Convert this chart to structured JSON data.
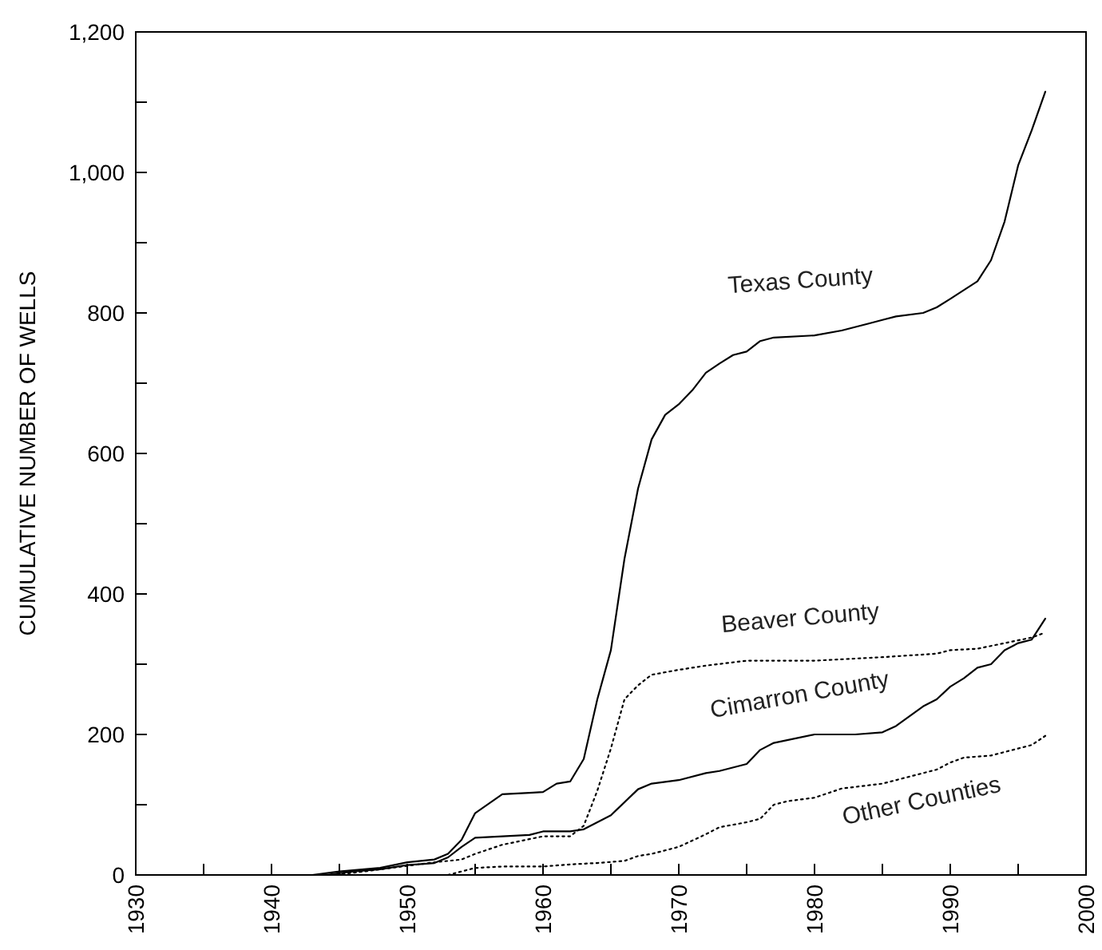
{
  "chart_data": {
    "type": "line",
    "ylabel": "CUMULATIVE NUMBER OF WELLS",
    "xlim": [
      1930,
      2000
    ],
    "ylim": [
      0,
      1200
    ],
    "xticks": [
      1930,
      {
        "value": 1935,
        "label": null
      },
      1940,
      {
        "value": 1945,
        "label": null
      },
      1950,
      {
        "value": 1955,
        "label": null
      },
      1960,
      {
        "value": 1965,
        "label": null
      },
      1970,
      {
        "value": 1975,
        "label": null
      },
      1980,
      {
        "value": 1985,
        "label": null
      },
      1990,
      {
        "value": 1995,
        "label": null
      },
      2000
    ],
    "yticks": [
      0,
      {
        "value": 100,
        "label": null
      },
      200,
      {
        "value": 300,
        "label": null
      },
      400,
      {
        "value": 500,
        "label": null
      },
      600,
      {
        "value": 700,
        "label": null
      },
      800,
      {
        "value": 900,
        "label": null
      },
      {
        "value": 1000,
        "label": "1,000"
      },
      {
        "value": 1100,
        "label": null
      },
      {
        "value": 1200,
        "label": "1,200"
      }
    ],
    "grid": false,
    "marker": "none",
    "series": [
      {
        "name": "Texas County",
        "color": "#000000",
        "line_style": "solid",
        "x": [
          1943,
          1945,
          1948,
          1950,
          1952,
          1953,
          1954,
          1955,
          1957,
          1959,
          1960,
          1961,
          1962,
          1963,
          1964,
          1965,
          1966,
          1967,
          1968,
          1969,
          1970,
          1971,
          1972,
          1973,
          1974,
          1975,
          1976,
          1977,
          1980,
          1982,
          1984,
          1985,
          1986,
          1988,
          1989,
          1990,
          1992,
          1993,
          1994,
          1995,
          1996,
          1997
        ],
        "values": [
          0,
          5,
          10,
          18,
          22,
          30,
          50,
          88,
          115,
          117,
          118,
          130,
          133,
          165,
          250,
          320,
          450,
          550,
          620,
          655,
          670,
          690,
          715,
          728,
          740,
          745,
          760,
          765,
          768,
          775,
          785,
          790,
          795,
          800,
          808,
          820,
          845,
          875,
          930,
          1010,
          1060,
          1115
        ]
      },
      {
        "name": "Beaver County",
        "color": "#000000",
        "line_style": "dotted",
        "x": [
          1941,
          1944,
          1946,
          1948,
          1950,
          1952,
          1954,
          1955,
          1957,
          1958,
          1960,
          1962,
          1963,
          1964,
          1965,
          1966,
          1967,
          1968,
          1970,
          1972,
          1975,
          1980,
          1985,
          1989,
          1990,
          1992,
          1994,
          1996,
          1997
        ],
        "values": [
          0,
          0,
          3,
          8,
          13,
          18,
          22,
          30,
          43,
          47,
          55,
          55,
          70,
          120,
          180,
          250,
          270,
          285,
          292,
          298,
          305,
          305,
          310,
          315,
          320,
          322,
          330,
          338,
          345
        ]
      },
      {
        "name": "Cimarron County",
        "color": "#000000",
        "line_style": "solid",
        "x": [
          1944,
          1946,
          1948,
          1950,
          1952,
          1953,
          1954,
          1955,
          1957,
          1959,
          1960,
          1962,
          1963,
          1965,
          1967,
          1968,
          1970,
          1972,
          1973,
          1975,
          1976,
          1977,
          1980,
          1983,
          1985,
          1986,
          1988,
          1989,
          1990,
          1991,
          1992,
          1993,
          1994,
          1995,
          1996,
          1997
        ],
        "values": [
          0,
          5,
          8,
          14,
          17,
          25,
          40,
          53,
          55,
          57,
          62,
          62,
          65,
          85,
          122,
          130,
          135,
          145,
          148,
          158,
          178,
          188,
          200,
          200,
          203,
          212,
          240,
          250,
          268,
          280,
          295,
          300,
          320,
          330,
          335,
          365
        ]
      },
      {
        "name": "Other Counties",
        "color": "#000000",
        "line_style": "dotted",
        "x": [
          1953,
          1955,
          1957,
          1960,
          1962,
          1964,
          1966,
          1967,
          1968,
          1970,
          1972,
          1973,
          1975,
          1976,
          1977,
          1978,
          1980,
          1982,
          1985,
          1987,
          1989,
          1990,
          1991,
          1993,
          1995,
          1996,
          1997
        ],
        "values": [
          0,
          10,
          12,
          12,
          15,
          17,
          20,
          27,
          30,
          40,
          58,
          68,
          75,
          80,
          100,
          105,
          110,
          123,
          130,
          140,
          150,
          160,
          167,
          170,
          180,
          185,
          198
        ]
      }
    ]
  }
}
